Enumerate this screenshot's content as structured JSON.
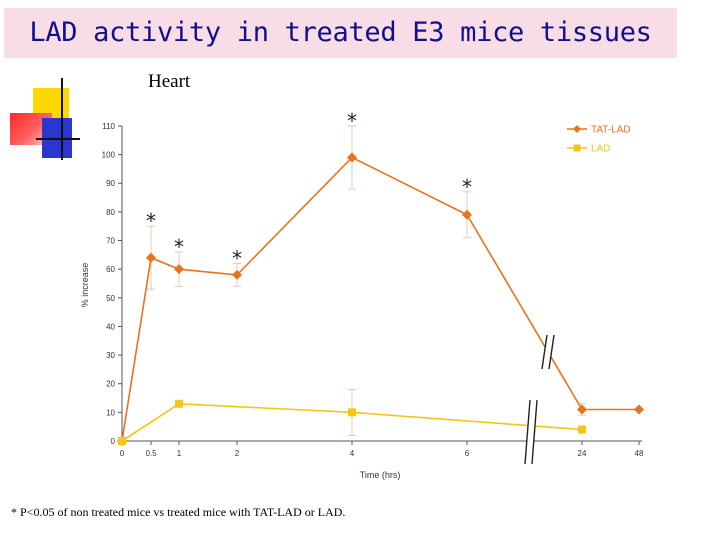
{
  "slide": {
    "title": "LAD activity in treated E3 mice tissues",
    "subtitle": "Heart",
    "footnote": "* P<0.05 of non treated mice vs treated mice with TAT-LAD or LAD.",
    "colors": {
      "title_bg": "#f9dde6",
      "title_text": "#10108c",
      "deco_yellow": "#ffd700",
      "deco_blue": "#2a36d0",
      "deco_red": "#ff3b3b"
    }
  },
  "chart_data": {
    "type": "line",
    "title": "Heart",
    "xlabel": "Time (hrs)",
    "ylabel": "% increase",
    "ylim": [
      0,
      110
    ],
    "yticks": [
      "0",
      "10",
      "20",
      "30",
      "40",
      "50",
      "60",
      "70",
      "80",
      "90",
      "100",
      "110"
    ],
    "categories": [
      "0",
      "0.5",
      "1",
      "2",
      "4",
      "6",
      "24",
      "48"
    ],
    "legend_position": "top-right",
    "significance_marker": "*",
    "series": [
      {
        "name": "TAT-LAD",
        "color": "#e8731c",
        "marker": "diamond",
        "values": [
          0,
          64,
          60,
          58,
          99,
          79,
          11,
          11
        ],
        "errors": [
          0,
          11,
          6,
          4,
          11,
          8,
          2,
          0
        ],
        "significant": [
          false,
          true,
          true,
          true,
          true,
          true,
          false,
          false
        ]
      },
      {
        "name": "LAD",
        "color": "#f5c518",
        "marker": "square",
        "values": [
          0,
          null,
          13,
          null,
          10,
          null,
          4,
          null
        ],
        "errors": [
          0,
          0,
          0,
          0,
          8,
          0,
          0,
          0
        ],
        "significant": [
          false,
          false,
          false,
          false,
          false,
          false,
          false,
          false
        ]
      }
    ]
  }
}
